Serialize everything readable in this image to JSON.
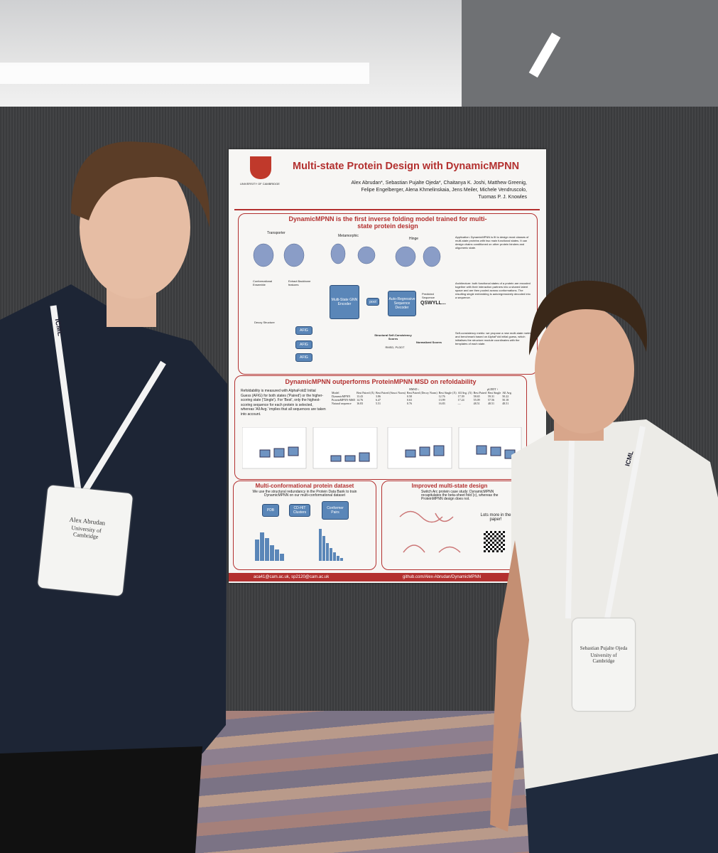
{
  "poster": {
    "title": "Multi-state Protein Design with DynamicMPNN",
    "institution": "UNIVERSITY OF CAMBRIDGE",
    "authors": [
      "Alex Abrudan*, Sebastian Pujalte Ojeda*, Chaitanya K. Joshi, Matthew Greenig,",
      "Felipe Engelberger, Alena Khmelinskaia, Jens Meiler, Michele Vendruscolo,",
      "Tuomas P. J. Knowles"
    ],
    "section1": {
      "heading": "DynamicMPNN is the first inverse folding model trained for multi-state protein design",
      "labels": [
        "Transporter",
        "Metamorphic",
        "Hinge",
        "Conformational Ensemble",
        "Extract Backbone features",
        "Decoy Structure",
        "Multi-State GNN Encoder",
        "pool",
        "Auto-Regressive Sequence Decoder",
        "Predicted Sequence",
        "QSWYLL...",
        "AFIG",
        "Structural Self-Consistency Scores",
        "RMSD, PLDDT",
        "Normalized Scores"
      ],
      "paragraphs": [
        "Application: DynamicMPNN is fit to design most classes of multi-state proteins with two main functional states. It can design chains conditioned on other protein binders and oligomeric state.",
        "Architecture: both functional states of a protein are encoded together with their interaction partners into a shared latent space and are then pooled across conformations. The resulting single embedding is autoregressively decoded into a sequence.",
        "Self-consistency metric: we propose a new multi-state metric and benchmark based on AlphaFold initial guess, which initialises the structure module coordinates with the templates of each state."
      ]
    },
    "section2": {
      "heading": "DynamicMPNN outperforms ProteinMPNN MSD on refoldability",
      "paragraph": "Refoldability is measured with AlphaFold2 Initial Guess (AFIG) for both states ('Paired') or the higher-scoring state ('Single'). For 'Best', only the highest-scoring sequence for each protein is selected, whereas 'All Avg.' implies that all sequences are taken into account.",
      "table": {
        "groups": [
          "RMSD ↓",
          "pLDDT ↑"
        ],
        "columns": [
          "Model",
          "Best Paired (Å)",
          "Best Paired (Struct Norm)",
          "Best Paired (Decoy Norm)",
          "Best Single (Å)",
          "All Avg. (Å)",
          "Best Paired",
          "Best Single",
          "All Avg."
        ],
        "rows": [
          [
            "DynamicMPNN",
            "13.43",
            "3.86",
            "0.58",
            "12.76",
            "17.39",
            "58.65",
            "59.31",
            "50.22"
          ],
          [
            "ProteinMPNN-MSD",
            "14.76",
            "6.47",
            "0.63",
            "13.99",
            "17.24",
            "55.09",
            "57.56",
            "50.18"
          ],
          [
            "Natural sequence",
            "16.83",
            "5.51",
            "0.76",
            "16.83",
            "—",
            "48.51",
            "48.51",
            "48.51"
          ]
        ]
      }
    },
    "section3": {
      "heading": "Multi-conformational protein dataset",
      "paragraph": "We use the structural redundancy in the Protein Data Bank to train DynamicMPNN on our multi-conformational dataset",
      "labels": [
        "PDB",
        "CD-HIT Clusters",
        "Conformer Pairs"
      ]
    },
    "section4": {
      "heading": "Improved multi-state design",
      "paragraph": "Switch Arc protein case study: DynamicMPNN recapitulates the beta-sheet fold (c), whereas the ProteinMPNN design does not.",
      "note": "Lots more in the paper!"
    },
    "footer": {
      "emails": "aca41@cam.ac.uk, sp2120@cam.ac.uk",
      "github": "github.com/Alex-Abrudan/DynamicMPNN"
    }
  },
  "badges": [
    {
      "name": "Alex Abrudan",
      "affiliation": "University of Cambridge"
    },
    {
      "name": "Sebastian Pujalte Ojeda",
      "affiliation": "University of Cambridge"
    }
  ],
  "lanyard": "ICML"
}
